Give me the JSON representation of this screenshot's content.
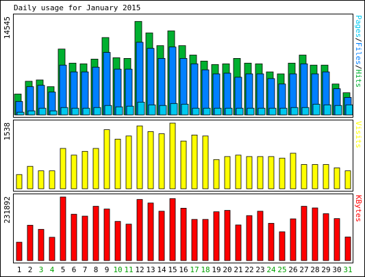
{
  "chart_data": {
    "type": "bar",
    "title": "Daily usage for January 2015",
    "categories": [
      "1",
      "2",
      "3",
      "4",
      "5",
      "6",
      "7",
      "8",
      "9",
      "10",
      "11",
      "12",
      "13",
      "14",
      "15",
      "16",
      "17",
      "18",
      "19",
      "20",
      "21",
      "22",
      "23",
      "24",
      "25",
      "26",
      "27",
      "28",
      "29",
      "30",
      "31"
    ],
    "weekend_days": [
      3,
      4,
      10,
      11,
      17,
      18,
      24,
      25,
      31
    ],
    "colors": {
      "hits": "#00b030",
      "files": "#0080ff",
      "pages": "#00c8f0",
      "visits": "#ffff00",
      "kbytes": "#ff0000",
      "weekday_label": "#000000",
      "weekend_label": "#00a000"
    },
    "panels": [
      {
        "id": "hits-files-pages",
        "ymax_label": "14545",
        "ylim": [
          0,
          14545
        ],
        "legend_parts": [
          {
            "text": "Pages",
            "color": "#00c8f0"
          },
          {
            "text": "/",
            "color": "#000000"
          },
          {
            "text": "Files",
            "color": "#0080ff"
          },
          {
            "text": "/",
            "color": "#000000"
          },
          {
            "text": "Hits",
            "color": "#00b030"
          }
        ],
        "series": [
          {
            "name": "Hits",
            "values": [
              3100,
              5000,
              5200,
              4200,
              9800,
              7700,
              7600,
              8300,
              11500,
              8500,
              8400,
              13900,
              12200,
              10300,
              12500,
              10300,
              8900,
              8000,
              7500,
              7600,
              8400,
              7700,
              7600,
              6400,
              6100,
              7700,
              8900,
              7400,
              7400,
              4600,
              3300
            ]
          },
          {
            "name": "Files",
            "values": [
              2000,
              4200,
              4400,
              3400,
              7400,
              6400,
              6400,
              7100,
              9300,
              6800,
              6800,
              10800,
              9900,
              8400,
              10100,
              8400,
              7600,
              6700,
              6100,
              6200,
              5600,
              6100,
              6100,
              5400,
              4600,
              6100,
              7600,
              6100,
              6400,
              3900,
              2600
            ]
          },
          {
            "name": "Pages",
            "values": [
              400,
              600,
              1000,
              600,
              1100,
              1000,
              1000,
              1100,
              1400,
              1200,
              1300,
              1900,
              1500,
              1400,
              1700,
              1600,
              1000,
              1000,
              1000,
              1000,
              1000,
              1000,
              1000,
              1000,
              1000,
              1100,
              1100,
              1600,
              1500,
              1400,
              1500
            ]
          }
        ]
      },
      {
        "id": "visits",
        "ymax_label": "1538",
        "ylim": [
          0,
          1538
        ],
        "legend_parts": [
          {
            "text": "Visits",
            "color": "#ffff00"
          }
        ],
        "series": [
          {
            "name": "Visits",
            "values": [
              333,
              526,
              421,
              421,
              945,
              789,
              877,
              945,
              1385,
              1163,
              1237,
              1473,
              1339,
              1289,
              1538,
              1119,
              1260,
              1237,
              684,
              754,
              789,
              754,
              754,
              754,
              718,
              833,
              568,
              568,
              568,
              490,
              421
            ]
          }
        ]
      },
      {
        "id": "kbytes",
        "ymax_label": "231892",
        "ylim": [
          0,
          231892
        ],
        "legend_parts": [
          {
            "text": "KBytes",
            "color": "#ff0000"
          }
        ],
        "series": [
          {
            "name": "KBytes",
            "values": [
              67000,
              129000,
              114000,
              85000,
              231892,
              169000,
              162000,
              198000,
              188000,
              143000,
              133000,
              223000,
              210000,
              180000,
              226000,
              191000,
              150000,
              150000,
              178000,
              183000,
              130000,
              164000,
              180000,
              136000,
              105000,
              152000,
              198000,
              192000,
              171000,
              153000,
              86000
            ]
          }
        ]
      }
    ]
  }
}
